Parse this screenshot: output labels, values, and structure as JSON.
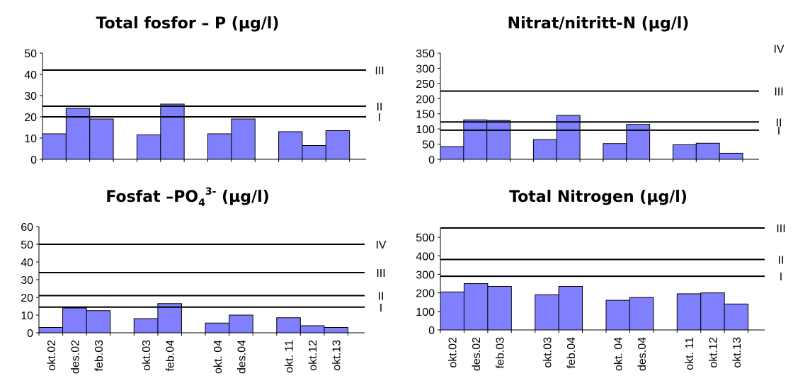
{
  "chart_data": [
    {
      "type": "bar",
      "title": "Total fosfor – P (µg/l)",
      "title_sub": "",
      "title_sup": "",
      "title_end": "",
      "ylim": [
        0,
        50
      ],
      "yticks": [
        0,
        10,
        20,
        30,
        40,
        50
      ],
      "show_xlabels": false,
      "categories": [
        "okt.02",
        "des.02",
        "feb.03",
        "okt.03",
        "feb.04",
        "okt. 04",
        "des.04",
        "okt. 11",
        "okt.12",
        "okt.13"
      ],
      "values": [
        12,
        24,
        19,
        11.5,
        26,
        12,
        19,
        13,
        6.5,
        13.5
      ],
      "class_lines": [
        {
          "label": "I",
          "value": 20
        },
        {
          "label": "II",
          "value": 25
        },
        {
          "label": "III",
          "value": 42
        }
      ]
    },
    {
      "type": "bar",
      "title": "Nitrat/nitritt-N (µg/l)",
      "title_sub": "",
      "title_sup": "",
      "title_end": "",
      "ylim": [
        0,
        350
      ],
      "yticks": [
        0,
        50,
        100,
        150,
        200,
        250,
        300,
        350
      ],
      "show_xlabels": false,
      "categories": [
        "okt.02",
        "des.02",
        "feb.03",
        "okt.03",
        "feb.04",
        "okt. 04",
        "des.04",
        "okt. 11",
        "okt.12",
        "okt.13"
      ],
      "values": [
        42,
        130,
        128,
        65,
        145,
        52,
        115,
        48,
        53,
        20
      ],
      "class_lines": [
        {
          "label": "I",
          "value": 96
        },
        {
          "label": "II",
          "value": 123
        },
        {
          "label": "III",
          "value": 225
        },
        {
          "label": "IV",
          "value": 365
        }
      ]
    },
    {
      "type": "bar",
      "title": "Fosfat –PO",
      "title_sub": "4",
      "title_sup": "3-",
      "title_end": " (µg/l)",
      "ylim": [
        0,
        60
      ],
      "yticks": [
        0,
        10,
        20,
        30,
        40,
        50,
        60
      ],
      "show_xlabels": true,
      "categories": [
        "okt.02",
        "des.02",
        "feb.03",
        "okt.03",
        "feb.04",
        "okt. 04",
        "des.04",
        "okt. 11",
        "okt.12",
        "okt.13"
      ],
      "values": [
        3,
        14,
        12.5,
        8,
        16.5,
        5.5,
        10,
        8.5,
        4,
        3
      ],
      "class_lines": [
        {
          "label": "I",
          "value": 14.5
        },
        {
          "label": "II",
          "value": 21
        },
        {
          "label": "III",
          "value": 34
        },
        {
          "label": "IV",
          "value": 50
        }
      ]
    },
    {
      "type": "bar",
      "title": "Total Nitrogen (µg/l)",
      "title_sub": "",
      "title_sup": "",
      "title_end": "",
      "ylim": [
        0,
        550
      ],
      "yticks": [
        0,
        100,
        200,
        300,
        400,
        500
      ],
      "show_xlabels": true,
      "categories": [
        "okt.02",
        "des.02",
        "feb.03",
        "okt.03",
        "feb.04",
        "okt. 04",
        "des.04",
        "okt. 11",
        "okt.12",
        "okt.13"
      ],
      "values": [
        205,
        250,
        235,
        190,
        235,
        160,
        175,
        195,
        200,
        140
      ],
      "class_lines": [
        {
          "label": "I",
          "value": 290
        },
        {
          "label": "II",
          "value": 380
        },
        {
          "label": "III",
          "value": 550
        }
      ]
    }
  ]
}
